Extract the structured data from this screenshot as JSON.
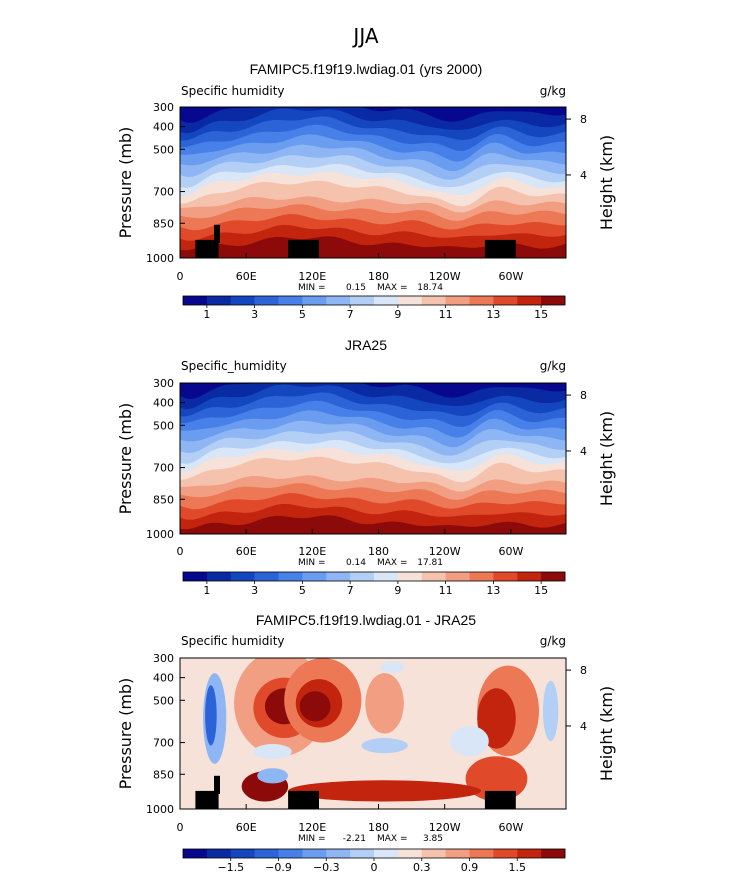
{
  "page_title": "JJA",
  "chart_data": [
    {
      "type": "heatmap",
      "title": "FAMIPC5.f19f19.lwdiag.01 (yrs 2000)",
      "field_label": "Specific humidity",
      "units": "g/kg",
      "ylabel": "Pressure (mb)",
      "y2label": "Height (km)",
      "yticks": [
        "300",
        "400",
        "500",
        "700",
        "850",
        "1000"
      ],
      "y2ticks": [
        "8",
        "4"
      ],
      "xticks": [
        "0",
        "60E",
        "120E",
        "180",
        "120W",
        "60W"
      ],
      "min_label": "MIN =",
      "min_value": "0.15",
      "max_label": "MAX =",
      "max_value": "18.74",
      "colorbar_labels": [
        "1",
        "3",
        "5",
        "7",
        "9",
        "11",
        "13",
        "15"
      ],
      "palette": [
        "#08088f",
        "#0a2aa3",
        "#1446c0",
        "#2c64d8",
        "#4680e8",
        "#6a9cf0",
        "#8eb6f4",
        "#b4cff5",
        "#d8e6f7",
        "#f7e2d9",
        "#f5c2ad",
        "#f29e82",
        "#ec7856",
        "#e04a2a",
        "#c2240e",
        "#8c0a0a"
      ]
    },
    {
      "type": "heatmap",
      "title": "JRA25",
      "field_label": "Specific_humidity",
      "units": "g/kg",
      "ylabel": "Pressure (mb)",
      "y2label": "Height (km)",
      "yticks": [
        "300",
        "400",
        "500",
        "700",
        "850",
        "1000"
      ],
      "y2ticks": [
        "8",
        "4"
      ],
      "xticks": [
        "0",
        "60E",
        "120E",
        "180",
        "120W",
        "60W"
      ],
      "min_label": "MIN =",
      "min_value": "0.14",
      "max_label": "MAX =",
      "max_value": "17.81",
      "colorbar_labels": [
        "1",
        "3",
        "5",
        "7",
        "9",
        "11",
        "13",
        "15"
      ],
      "palette": [
        "#08088f",
        "#0a2aa3",
        "#1446c0",
        "#2c64d8",
        "#4680e8",
        "#6a9cf0",
        "#8eb6f4",
        "#b4cff5",
        "#d8e6f7",
        "#f7e2d9",
        "#f5c2ad",
        "#f29e82",
        "#ec7856",
        "#e04a2a",
        "#c2240e",
        "#8c0a0a"
      ]
    },
    {
      "type": "heatmap",
      "title": "FAMIPC5.f19f19.lwdiag.01 - JRA25",
      "field_label": "Specific humidity",
      "units": "g/kg",
      "ylabel": "Pressure (mb)",
      "y2label": "Height (km)",
      "yticks": [
        "300",
        "400",
        "500",
        "700",
        "850",
        "1000"
      ],
      "y2ticks": [
        "8",
        "4"
      ],
      "xticks": [
        "0",
        "60E",
        "120E",
        "180",
        "120W",
        "60W"
      ],
      "min_label": "MIN =",
      "min_value": "-2.21",
      "max_label": "MAX =",
      "max_value": "3.85",
      "colorbar_labels": [
        "−1.5",
        "−0.9",
        "−0.3",
        "0",
        "0.3",
        "0.9",
        "1.5"
      ],
      "palette": [
        "#08088f",
        "#0a2aa3",
        "#1446c0",
        "#2c64d8",
        "#4680e8",
        "#6a9cf0",
        "#8eb6f4",
        "#b4cff5",
        "#d8e6f7",
        "#f7e2d9",
        "#f5c2ad",
        "#f29e82",
        "#ec7856",
        "#e04a2a",
        "#c2240e",
        "#8c0a0a"
      ]
    }
  ]
}
